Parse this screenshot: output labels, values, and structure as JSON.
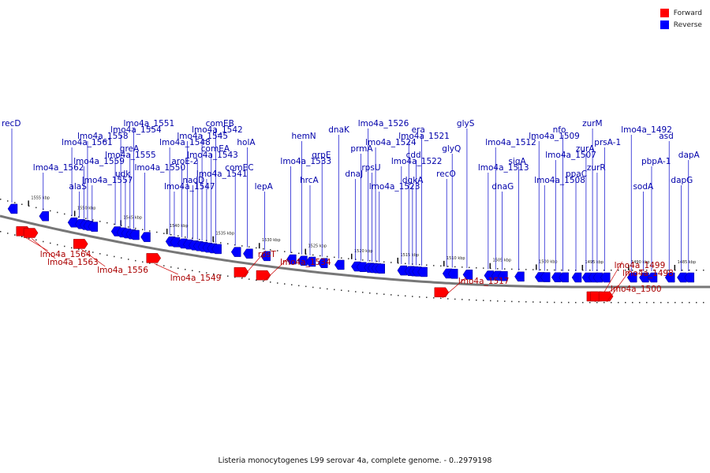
{
  "legend": {
    "forward_label": "Forward",
    "reverse_label": "Reverse",
    "forward_color": "#ff0000",
    "reverse_color": "#0000ff"
  },
  "caption": "Listeria monocytogenes L99 serovar 4a, complete genome. - 0..2979198",
  "view": {
    "start_kbp": 1482.4,
    "end_kbp": 1557.0
  },
  "scale_labels": [
    "1555 kbp",
    "1550 kbp",
    "1545 kbp",
    "1540 kbp",
    "1535 kbp",
    "1530 kbp",
    "1525 kbp",
    "1520 kbp",
    "1515 kbp",
    "1510 kbp",
    "1505 kbp",
    "1500 kbp",
    "1495 kbp",
    "1490 kbp",
    "1485 kbp"
  ],
  "reverse_genes": [
    {
      "name": "recD",
      "kbp": 1557.0
    },
    {
      "name": "lmo4a_1562",
      "kbp": 1553.6
    },
    {
      "name": "lmo4a_1561",
      "kbp": 1550.5
    },
    {
      "name": "alaS",
      "kbp": 1549.7
    },
    {
      "name": "lmo4a_1559",
      "kbp": 1549.2
    },
    {
      "name": "lmo4a_1558",
      "kbp": 1548.8
    },
    {
      "name": "lmo4a_1557",
      "kbp": 1548.3
    },
    {
      "name": "lmo4a_1555",
      "kbp": 1545.8
    },
    {
      "name": "lmo4a_1554",
      "kbp": 1545.2
    },
    {
      "name": "udk",
      "kbp": 1544.7
    },
    {
      "name": "greA",
      "kbp": 1544.2
    },
    {
      "name": "lmo4a_1551",
      "kbp": 1543.8
    },
    {
      "name": "lmo4a_1550",
      "kbp": 1542.6
    },
    {
      "name": "lmo4a_1548",
      "kbp": 1539.9
    },
    {
      "name": "lmo4a_1547",
      "kbp": 1539.4
    },
    {
      "name": "aroE-2",
      "kbp": 1538.6
    },
    {
      "name": "lmo4a_1545",
      "kbp": 1538.0
    },
    {
      "name": "nadD",
      "kbp": 1537.4
    },
    {
      "name": "lmo4a_1543",
      "kbp": 1536.9
    },
    {
      "name": "lmo4a_1542",
      "kbp": 1536.4
    },
    {
      "name": "lmo4a_1541",
      "kbp": 1535.9
    },
    {
      "name": "comEA",
      "kbp": 1535.4
    },
    {
      "name": "comEB",
      "kbp": 1534.9
    },
    {
      "name": "comEC",
      "kbp": 1532.8
    },
    {
      "name": "holA",
      "kbp": 1531.5
    },
    {
      "name": "lepA",
      "kbp": 1529.6
    },
    {
      "name": "lmo4a_1533",
      "kbp": 1526.8
    },
    {
      "name": "hemN",
      "kbp": 1525.6
    },
    {
      "name": "hrcA",
      "kbp": 1524.7
    },
    {
      "name": "grpE",
      "kbp": 1523.4
    },
    {
      "name": "dnaK",
      "kbp": 1521.6
    },
    {
      "name": "dnaJ",
      "kbp": 1519.8
    },
    {
      "name": "prmA",
      "kbp": 1519.2
    },
    {
      "name": "lmo4a_1526",
      "kbp": 1518.4
    },
    {
      "name": "rpsU",
      "kbp": 1518.0
    },
    {
      "name": "lmo4a_1524",
      "kbp": 1517.6
    },
    {
      "name": "lmo4a_1523",
      "kbp": 1517.2
    },
    {
      "name": "lmo4a_1522",
      "kbp": 1514.8
    },
    {
      "name": "lmo4a_1521",
      "kbp": 1514.0
    },
    {
      "name": "dgkA",
      "kbp": 1513.6
    },
    {
      "name": "cdd",
      "kbp": 1513.2
    },
    {
      "name": "era",
      "kbp": 1512.6
    },
    {
      "name": "recO",
      "kbp": 1509.9
    },
    {
      "name": "glyQ",
      "kbp": 1509.3
    },
    {
      "name": "glyS",
      "kbp": 1507.7
    },
    {
      "name": "lmo4a_1513",
      "kbp": 1505.4
    },
    {
      "name": "lmo4a_1512",
      "kbp": 1504.6
    },
    {
      "name": "dnaG",
      "kbp": 1503.9
    },
    {
      "name": "sigA",
      "kbp": 1502.1
    },
    {
      "name": "lmo4a_1509",
      "kbp": 1499.9
    },
    {
      "name": "lmo4a_1508",
      "kbp": 1499.3
    },
    {
      "name": "lmo4a_1507",
      "kbp": 1498.1
    },
    {
      "name": "nfo",
      "kbp": 1497.3
    },
    {
      "name": "ppaC",
      "kbp": 1495.9
    },
    {
      "name": "zurA",
      "kbp": 1494.8
    },
    {
      "name": "zurM",
      "kbp": 1494.1
    },
    {
      "name": "zurR",
      "kbp": 1493.6
    },
    {
      "name": "prsA-1",
      "kbp": 1492.8
    },
    {
      "name": "sodA",
      "kbp": 1488.6
    },
    {
      "name": "pbpA-1",
      "kbp": 1487.7
    },
    {
      "name": "asd",
      "kbp": 1485.8
    },
    {
      "name": "dapG",
      "kbp": 1484.5
    },
    {
      "name": "dapA",
      "kbp": 1483.7
    },
    {
      "name": "lmo4a_1492",
      "kbp": 1489.9
    }
  ],
  "forward_genes": [
    {
      "name": "lmo4a_1564",
      "kbp": 1555.4
    },
    {
      "name": "lmo4a_1563",
      "kbp": 1554.6
    },
    {
      "name": "lmo4a_1556",
      "kbp": 1549.2
    },
    {
      "name": "lmo4a_1549",
      "kbp": 1541.3
    },
    {
      "name": "rpsT",
      "kbp": 1531.8
    },
    {
      "name": "lmo4a_1534",
      "kbp": 1529.4
    },
    {
      "name": "lmo4a_1517",
      "kbp": 1510.1
    },
    {
      "name": "lmo4a_1500",
      "kbp": 1493.6
    },
    {
      "name": "lmo4a_1499",
      "kbp": 1493.2
    },
    {
      "name": "lmo4a_1498",
      "kbp": 1492.3
    }
  ]
}
